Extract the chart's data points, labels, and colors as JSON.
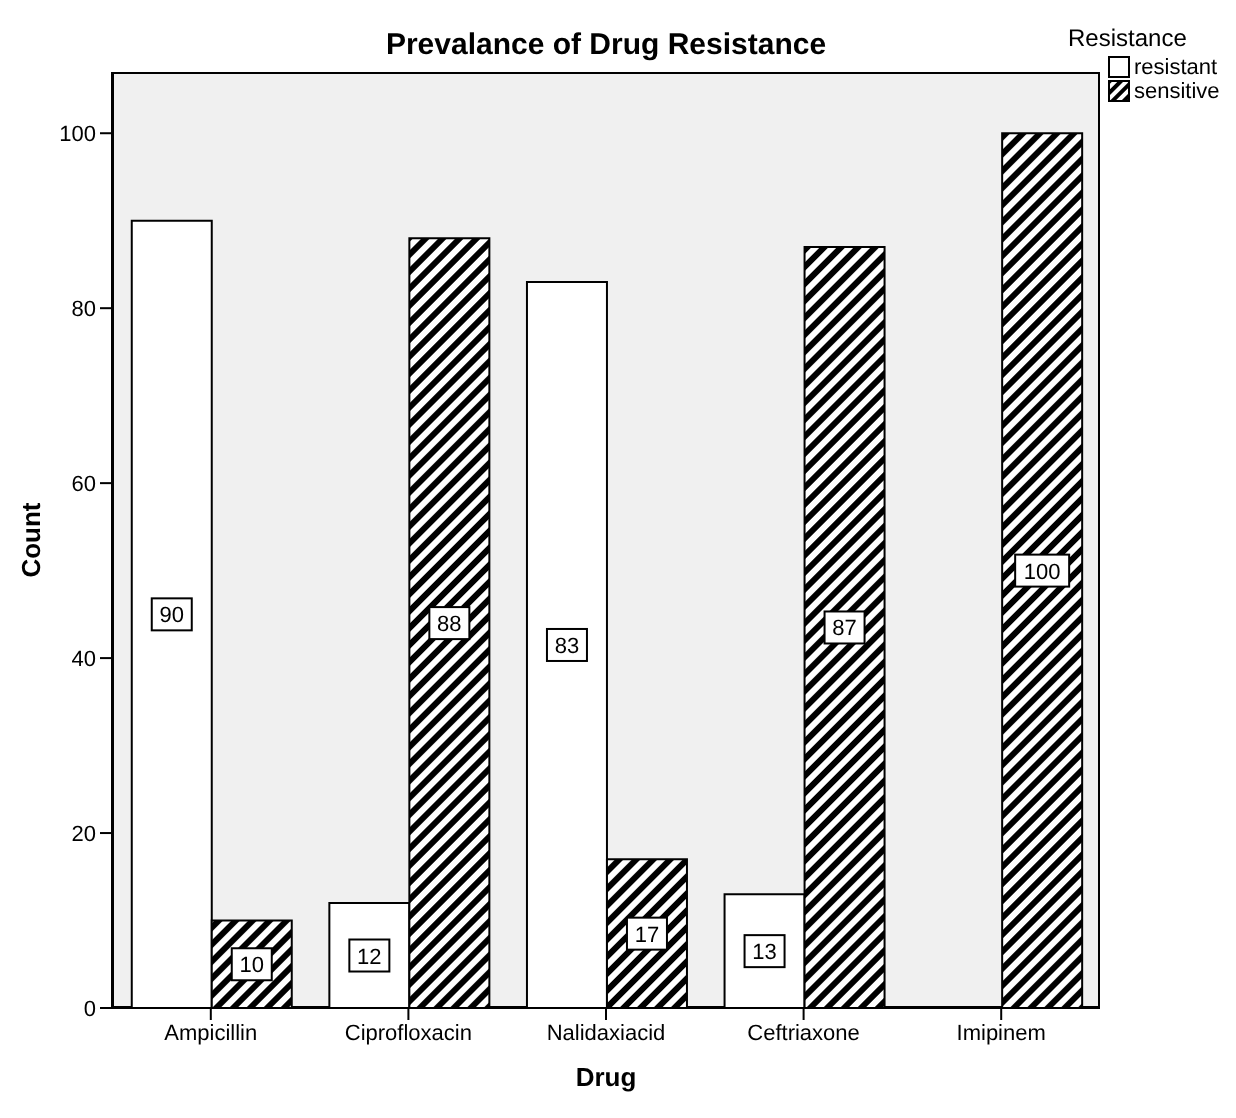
{
  "chart_data": {
    "type": "bar",
    "title": "Prevalance of Drug Resistance",
    "xlabel": "Drug",
    "ylabel": "Count",
    "legend_title": "Resistance",
    "legend": "top right",
    "categories": [
      "Ampicillin",
      "Ciprofloxacin",
      "Nalidaxiacid",
      "Ceftriaxone",
      "Imipinem"
    ],
    "series": [
      {
        "name": "resistant",
        "color": "#ffffff",
        "values": [
          90,
          12,
          83,
          13,
          0
        ],
        "value_labels": [
          "90",
          "12",
          "83",
          "13",
          null
        ]
      },
      {
        "name": "sensitive",
        "color": "#000000",
        "values": [
          10,
          88,
          17,
          87,
          100
        ],
        "value_labels": [
          "10",
          "88",
          "17",
          "87",
          "100"
        ]
      }
    ],
    "ylim": [
      0,
      107
    ],
    "yticks": [
      0,
      20,
      40,
      60,
      80,
      100
    ],
    "grid": false
  }
}
